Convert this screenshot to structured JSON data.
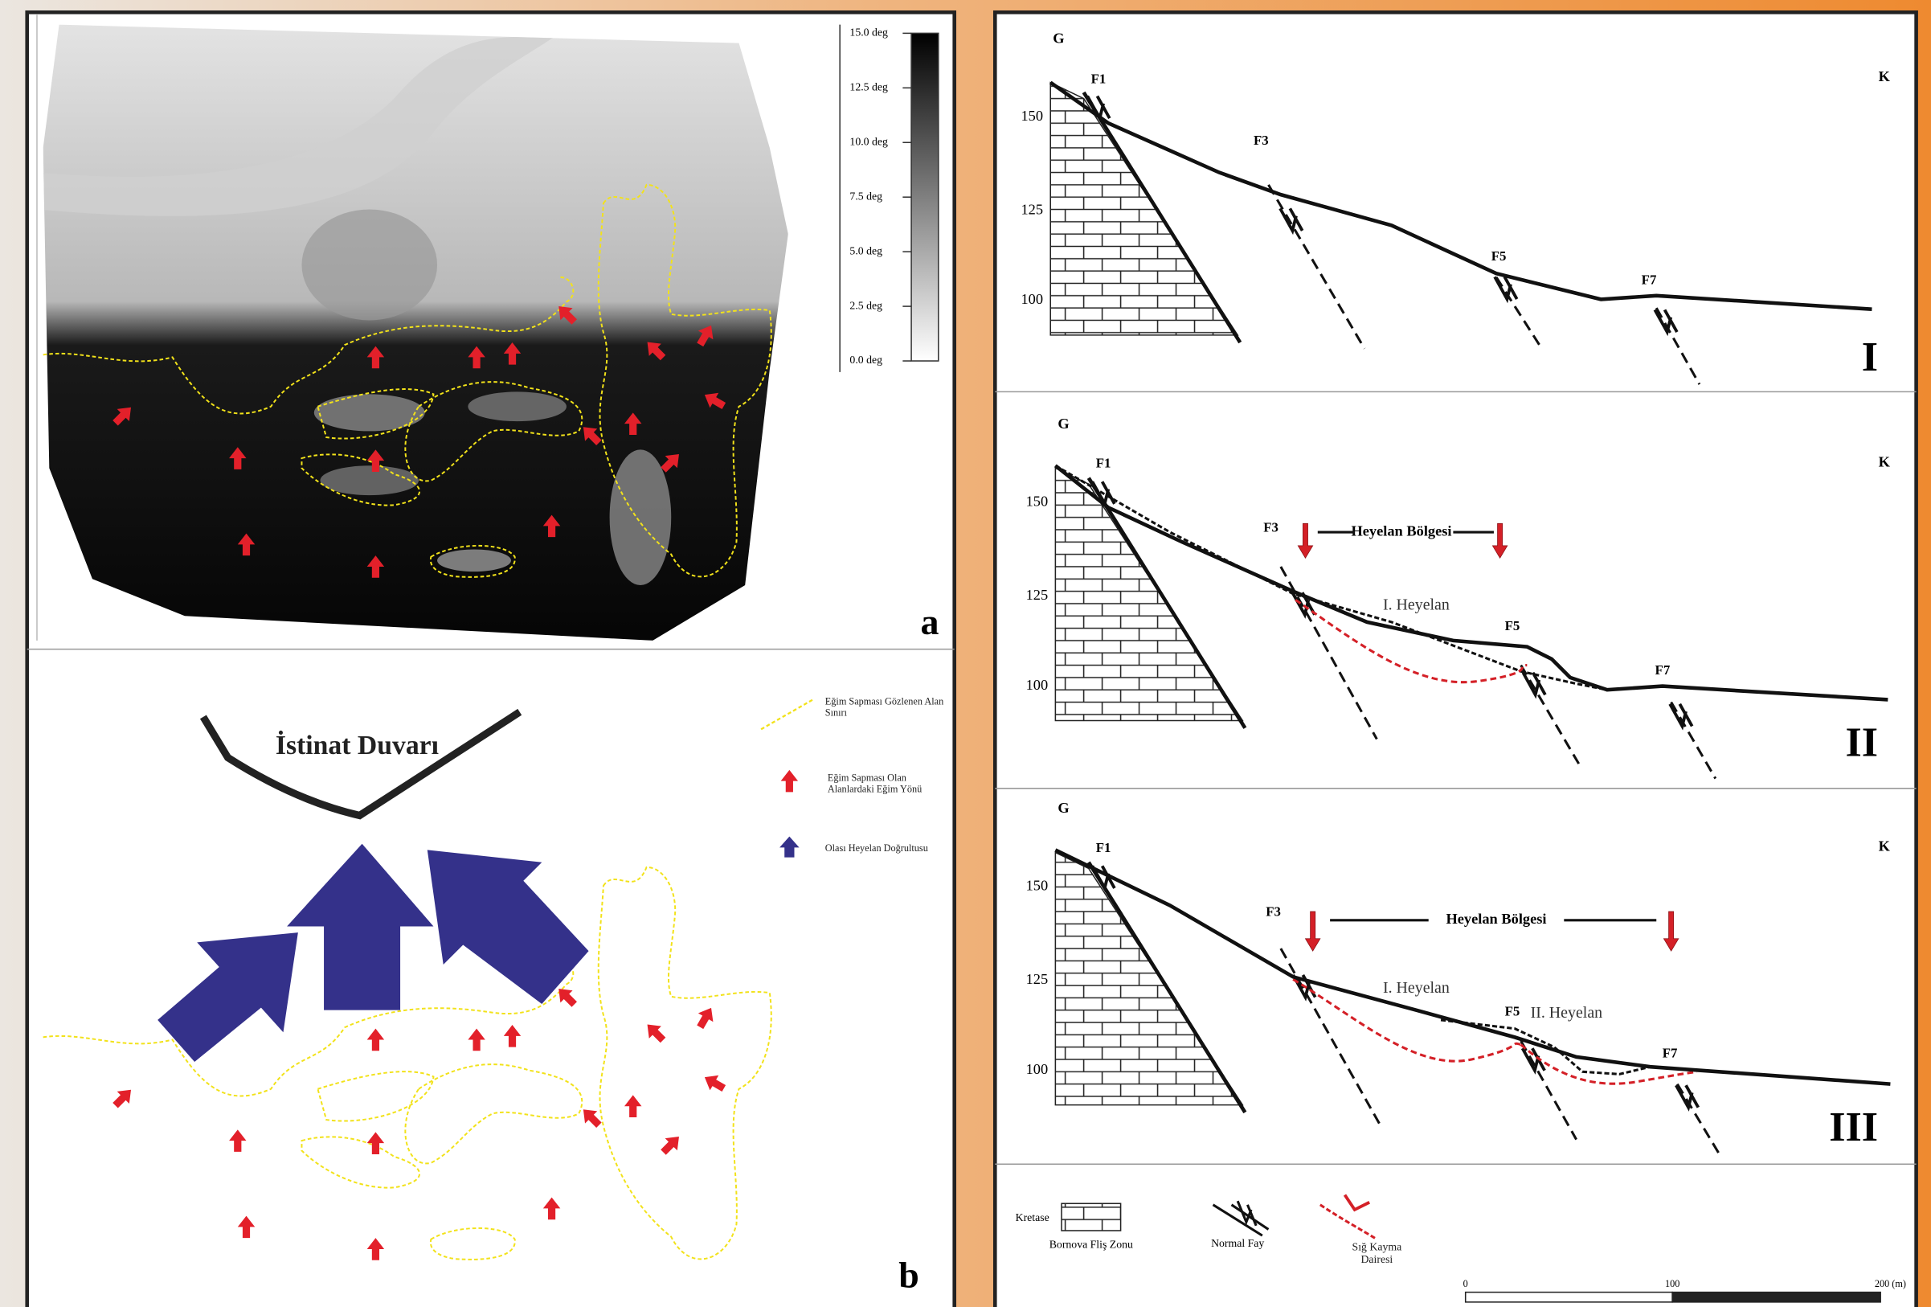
{
  "panel_a": {
    "colorbar_ticks": [
      "15.0 deg",
      "12.5 deg",
      "10.0 deg",
      "7.5 deg",
      "5.0 deg",
      "2.5 deg",
      "0.0 deg"
    ],
    "label": "a"
  },
  "panel_b": {
    "title": "İstinat Duvarı",
    "legend": [
      "Eğim Sapması Gözlenen Alan Sınırı",
      "Eğim Sapması Olan Alanlardaki Eğim Yönü",
      "Olası Heyelan Doğrultusu"
    ],
    "label": "b"
  },
  "sections": [
    {
      "left": "G",
      "right": "K",
      "yticks": [
        "150",
        "125",
        "100"
      ],
      "faults": [
        "F1",
        "F3",
        "F5",
        "F7"
      ],
      "label": "I"
    },
    {
      "left": "G",
      "right": "K",
      "yticks": [
        "150",
        "125",
        "100"
      ],
      "faults": [
        "F1",
        "F3",
        "F5",
        "F7"
      ],
      "zone": "Heyelan Bölgesi",
      "slides": [
        "I. Heyelan"
      ],
      "label": "II"
    },
    {
      "left": "G",
      "right": "K",
      "yticks": [
        "150",
        "125",
        "100"
      ],
      "faults": [
        "F1",
        "F3",
        "F5",
        "F7"
      ],
      "zone": "Heyelan Bölgesi",
      "slides": [
        "I. Heyelan",
        "II. Heyelan"
      ],
      "label": "III"
    }
  ],
  "legend": {
    "kretase": "Kretase",
    "formation": "Bornova Fliş Zonu",
    "fault": "Normal Fay",
    "slip": "Sığ Kayma Dairesi",
    "scale": [
      "0",
      "100",
      "200 (m)"
    ]
  }
}
